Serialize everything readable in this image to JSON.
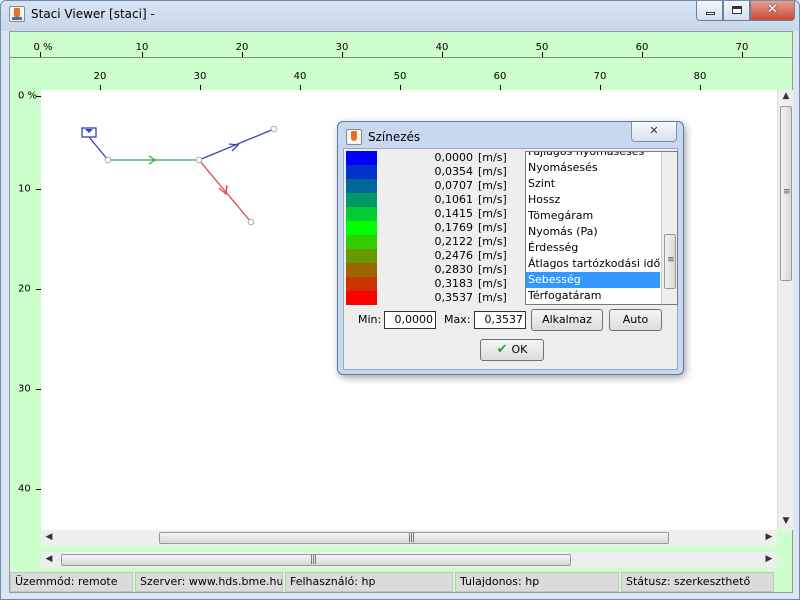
{
  "window": {
    "title": "Staci Viewer [staci]  -",
    "icons": {
      "app": "java-cup-icon",
      "minimize": "minimize-icon",
      "maximize": "maximize-icon",
      "close": "close-icon"
    },
    "close_glyph": "✕"
  },
  "rulers": {
    "top": [
      "0 %",
      "10",
      "20",
      "30",
      "40",
      "50",
      "60",
      "70"
    ],
    "second": [
      "20",
      "30",
      "40",
      "50",
      "60",
      "70",
      "80"
    ],
    "left": [
      "0 %",
      "10",
      "20",
      "30",
      "40"
    ]
  },
  "network": {
    "colors": {
      "blue": "#3344bb",
      "green": "#33aa55",
      "red": "#dd4444",
      "node": "#aaaaaa"
    }
  },
  "dialog": {
    "title": "Színezés",
    "close_glyph": "✕",
    "legend": [
      {
        "value": "0,0000",
        "unit": "[m/s]",
        "color": "#0000ff"
      },
      {
        "value": "0,0354",
        "unit": "[m/s]",
        "color": "#0033cc"
      },
      {
        "value": "0,0707",
        "unit": "[m/s]",
        "color": "#006699"
      },
      {
        "value": "0,1061",
        "unit": "[m/s]",
        "color": "#009966"
      },
      {
        "value": "0,1415",
        "unit": "[m/s]",
        "color": "#00cc33"
      },
      {
        "value": "0,1769",
        "unit": "[m/s]",
        "color": "#00ff00"
      },
      {
        "value": "0,2122",
        "unit": "[m/s]",
        "color": "#33cc00"
      },
      {
        "value": "0,2476",
        "unit": "[m/s]",
        "color": "#669900"
      },
      {
        "value": "0,2830",
        "unit": "[m/s]",
        "color": "#996600"
      },
      {
        "value": "0,3183",
        "unit": "[m/s]",
        "color": "#cc3300"
      },
      {
        "value": "0,3537",
        "unit": "[m/s]",
        "color": "#ff0000"
      }
    ],
    "list_items": [
      "Fajlagos nyomasesés",
      "Nyomásesés",
      "Szint",
      "Hossz",
      "Tömegáram",
      "Nyomás (Pa)",
      "Érdesség",
      "Átlagos tartózkodási idő",
      "Sebesség",
      "Térfogatáram"
    ],
    "selected_item": "Sebesség",
    "min_label": "Min:",
    "min_value": "0,0000",
    "max_label": "Max:",
    "max_value": "0,3537",
    "apply_label": "Alkalmaz",
    "auto_label": "Auto",
    "ok_label": "OK",
    "ok_icon": "checkmark-icon"
  },
  "status": {
    "mode": "Üzemmód: remote",
    "server": "Szerver: www.hds.bme.hu",
    "user": "Felhasználó: hp",
    "owner": "Tulajdonos: hp",
    "state": "Státusz: szerkeszthető"
  }
}
